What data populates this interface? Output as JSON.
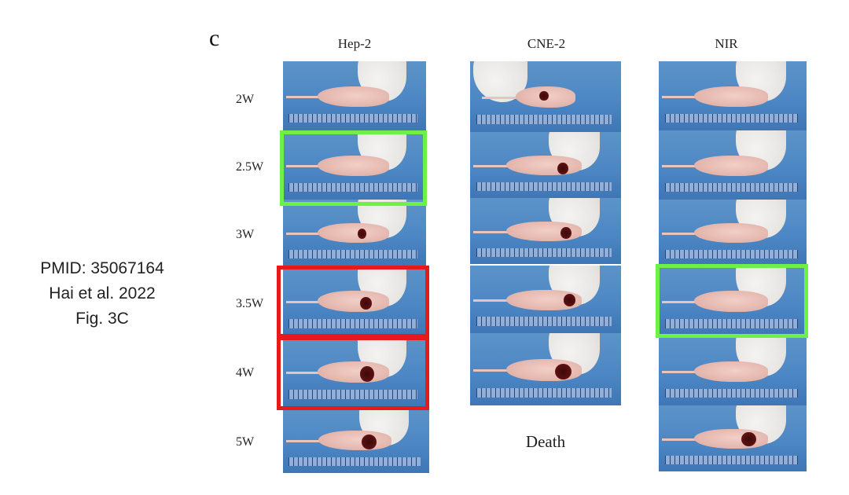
{
  "citation": {
    "line1": "PMID: 35067164",
    "line2": "Hai et al. 2022",
    "line3": "Fig. 3C"
  },
  "figure": {
    "panel_letter": "c",
    "columns": [
      "Hep-2",
      "CNE-2",
      "NIR"
    ],
    "rows": [
      "2W",
      "2.5W",
      "3W",
      "3.5W",
      "4W",
      "5W"
    ],
    "death_label": "Death",
    "highlight_colors": {
      "green": "#6ef046",
      "red": "#e8191a"
    },
    "highlights": [
      {
        "column": "Hep-2",
        "row": "2.5W",
        "color": "green"
      },
      {
        "column": "Hep-2",
        "row": "3.5W",
        "color": "red"
      },
      {
        "column": "Hep-2",
        "row": "4W",
        "color": "red"
      },
      {
        "column": "NIR",
        "row": "3.5W",
        "color": "green"
      }
    ]
  }
}
